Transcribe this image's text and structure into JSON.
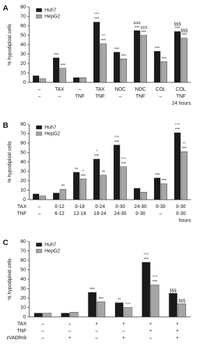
{
  "chart_data": [
    {
      "type": "bar",
      "panel": "A",
      "ylabel": "% hypodiploid cells",
      "ylim": [
        0,
        80
      ],
      "yticks": [
        0,
        10,
        20,
        30,
        40,
        50,
        60,
        70,
        80
      ],
      "series": [
        {
          "name": "Huh7",
          "color": "#1a1a1a",
          "values": [
            7,
            26,
            5,
            64,
            32,
            55,
            33,
            54
          ],
          "annotations": [
            null,
            [
              "***"
            ],
            null,
            [
              "°°°",
              "***"
            ],
            [
              "***"
            ],
            [
              "###",
              "***"
            ],
            [
              "***"
            ],
            [
              "§§§",
              "***"
            ]
          ]
        },
        {
          "name": "HepG2",
          "color": "#a6a6a6",
          "values": [
            4,
            15,
            5,
            41,
            25,
            50,
            22,
            47
          ],
          "annotations": [
            null,
            [
              "***"
            ],
            null,
            [
              "°°",
              "***"
            ],
            [
              "***"
            ],
            [
              "###",
              "***"
            ],
            [
              "***"
            ],
            [
              "§§§",
              "***"
            ]
          ]
        }
      ],
      "rows": [
        {
          "name": "",
          "labels": [
            "–",
            "TAX",
            "–",
            "TAX",
            "NOC",
            "NOC",
            "COL",
            "COL"
          ]
        },
        {
          "name": "",
          "labels": [
            "–",
            "–",
            "TNF",
            "TNF",
            "–",
            "TNF",
            "–",
            "TNF"
          ]
        }
      ],
      "unit": "24 hours"
    },
    {
      "type": "bar",
      "panel": "B",
      "ylabel": "% hypodiploid cells",
      "ylim": [
        0,
        80
      ],
      "yticks": [
        0,
        10,
        20,
        30,
        40,
        50,
        60,
        70,
        80
      ],
      "series": [
        {
          "name": "Huh7",
          "color": "#1a1a1a",
          "values": [
            6,
            7,
            29,
            43,
            58,
            12,
            23,
            71
          ],
          "annotations": [
            null,
            null,
            [
              "**"
            ],
            [
              "°",
              "***"
            ],
            [
              "°°°",
              "***"
            ],
            null,
            [
              "***"
            ],
            [
              "°°°",
              "***"
            ]
          ]
        },
        {
          "name": "HepG2",
          "color": "#a6a6a6",
          "values": [
            4,
            11,
            22,
            26,
            35,
            8,
            17,
            51
          ],
          "annotations": [
            null,
            [
              "**"
            ],
            [
              "°",
              "***"
            ],
            [
              "**"
            ],
            [
              "°°°",
              "***"
            ],
            null,
            [
              "***"
            ],
            [
              "°°",
              "***"
            ]
          ]
        }
      ],
      "rows": [
        {
          "name": "TAX",
          "labels": [
            "–",
            "0-12",
            "0-18",
            "0-24",
            "0-30",
            "24-30",
            "0-30",
            "0-30"
          ]
        },
        {
          "name": "TNF",
          "labels": [
            "–",
            "6-12",
            "12-18",
            "18-24",
            "24-30",
            "0-30",
            "–",
            "0-30"
          ]
        }
      ],
      "unit": "hours"
    },
    {
      "type": "bar",
      "panel": "C",
      "ylabel": "% hypodiploid cells",
      "ylim": [
        0,
        80
      ],
      "yticks": [
        0,
        10,
        20,
        30,
        40,
        50,
        60,
        70,
        80
      ],
      "series": [
        {
          "name": "Huh7",
          "color": "#1a1a1a",
          "values": [
            4,
            4,
            26,
            15,
            58,
            25
          ],
          "annotations": [
            null,
            null,
            [
              "***"
            ],
            [
              "°°"
            ],
            [
              "°°°",
              "***"
            ],
            [
              "§§§"
            ]
          ]
        },
        {
          "name": "HepG2",
          "color": "#a6a6a6",
          "values": [
            4,
            5,
            16,
            10,
            34,
            14
          ],
          "annotations": [
            null,
            null,
            [
              "***"
            ],
            [
              "°°°"
            ],
            [
              "°°°",
              "***"
            ],
            [
              "§§§"
            ]
          ]
        }
      ],
      "rows": [
        {
          "name": "TAX",
          "labels": [
            "–",
            "–",
            "+",
            "+",
            "+",
            "+"
          ]
        },
        {
          "name": "TNF",
          "labels": [
            "–",
            "–",
            "–",
            "–",
            "+",
            "+"
          ]
        },
        {
          "name": "zVADfmk",
          "labels": [
            "–",
            "+",
            "–",
            "+",
            "–",
            "+"
          ]
        }
      ]
    }
  ]
}
